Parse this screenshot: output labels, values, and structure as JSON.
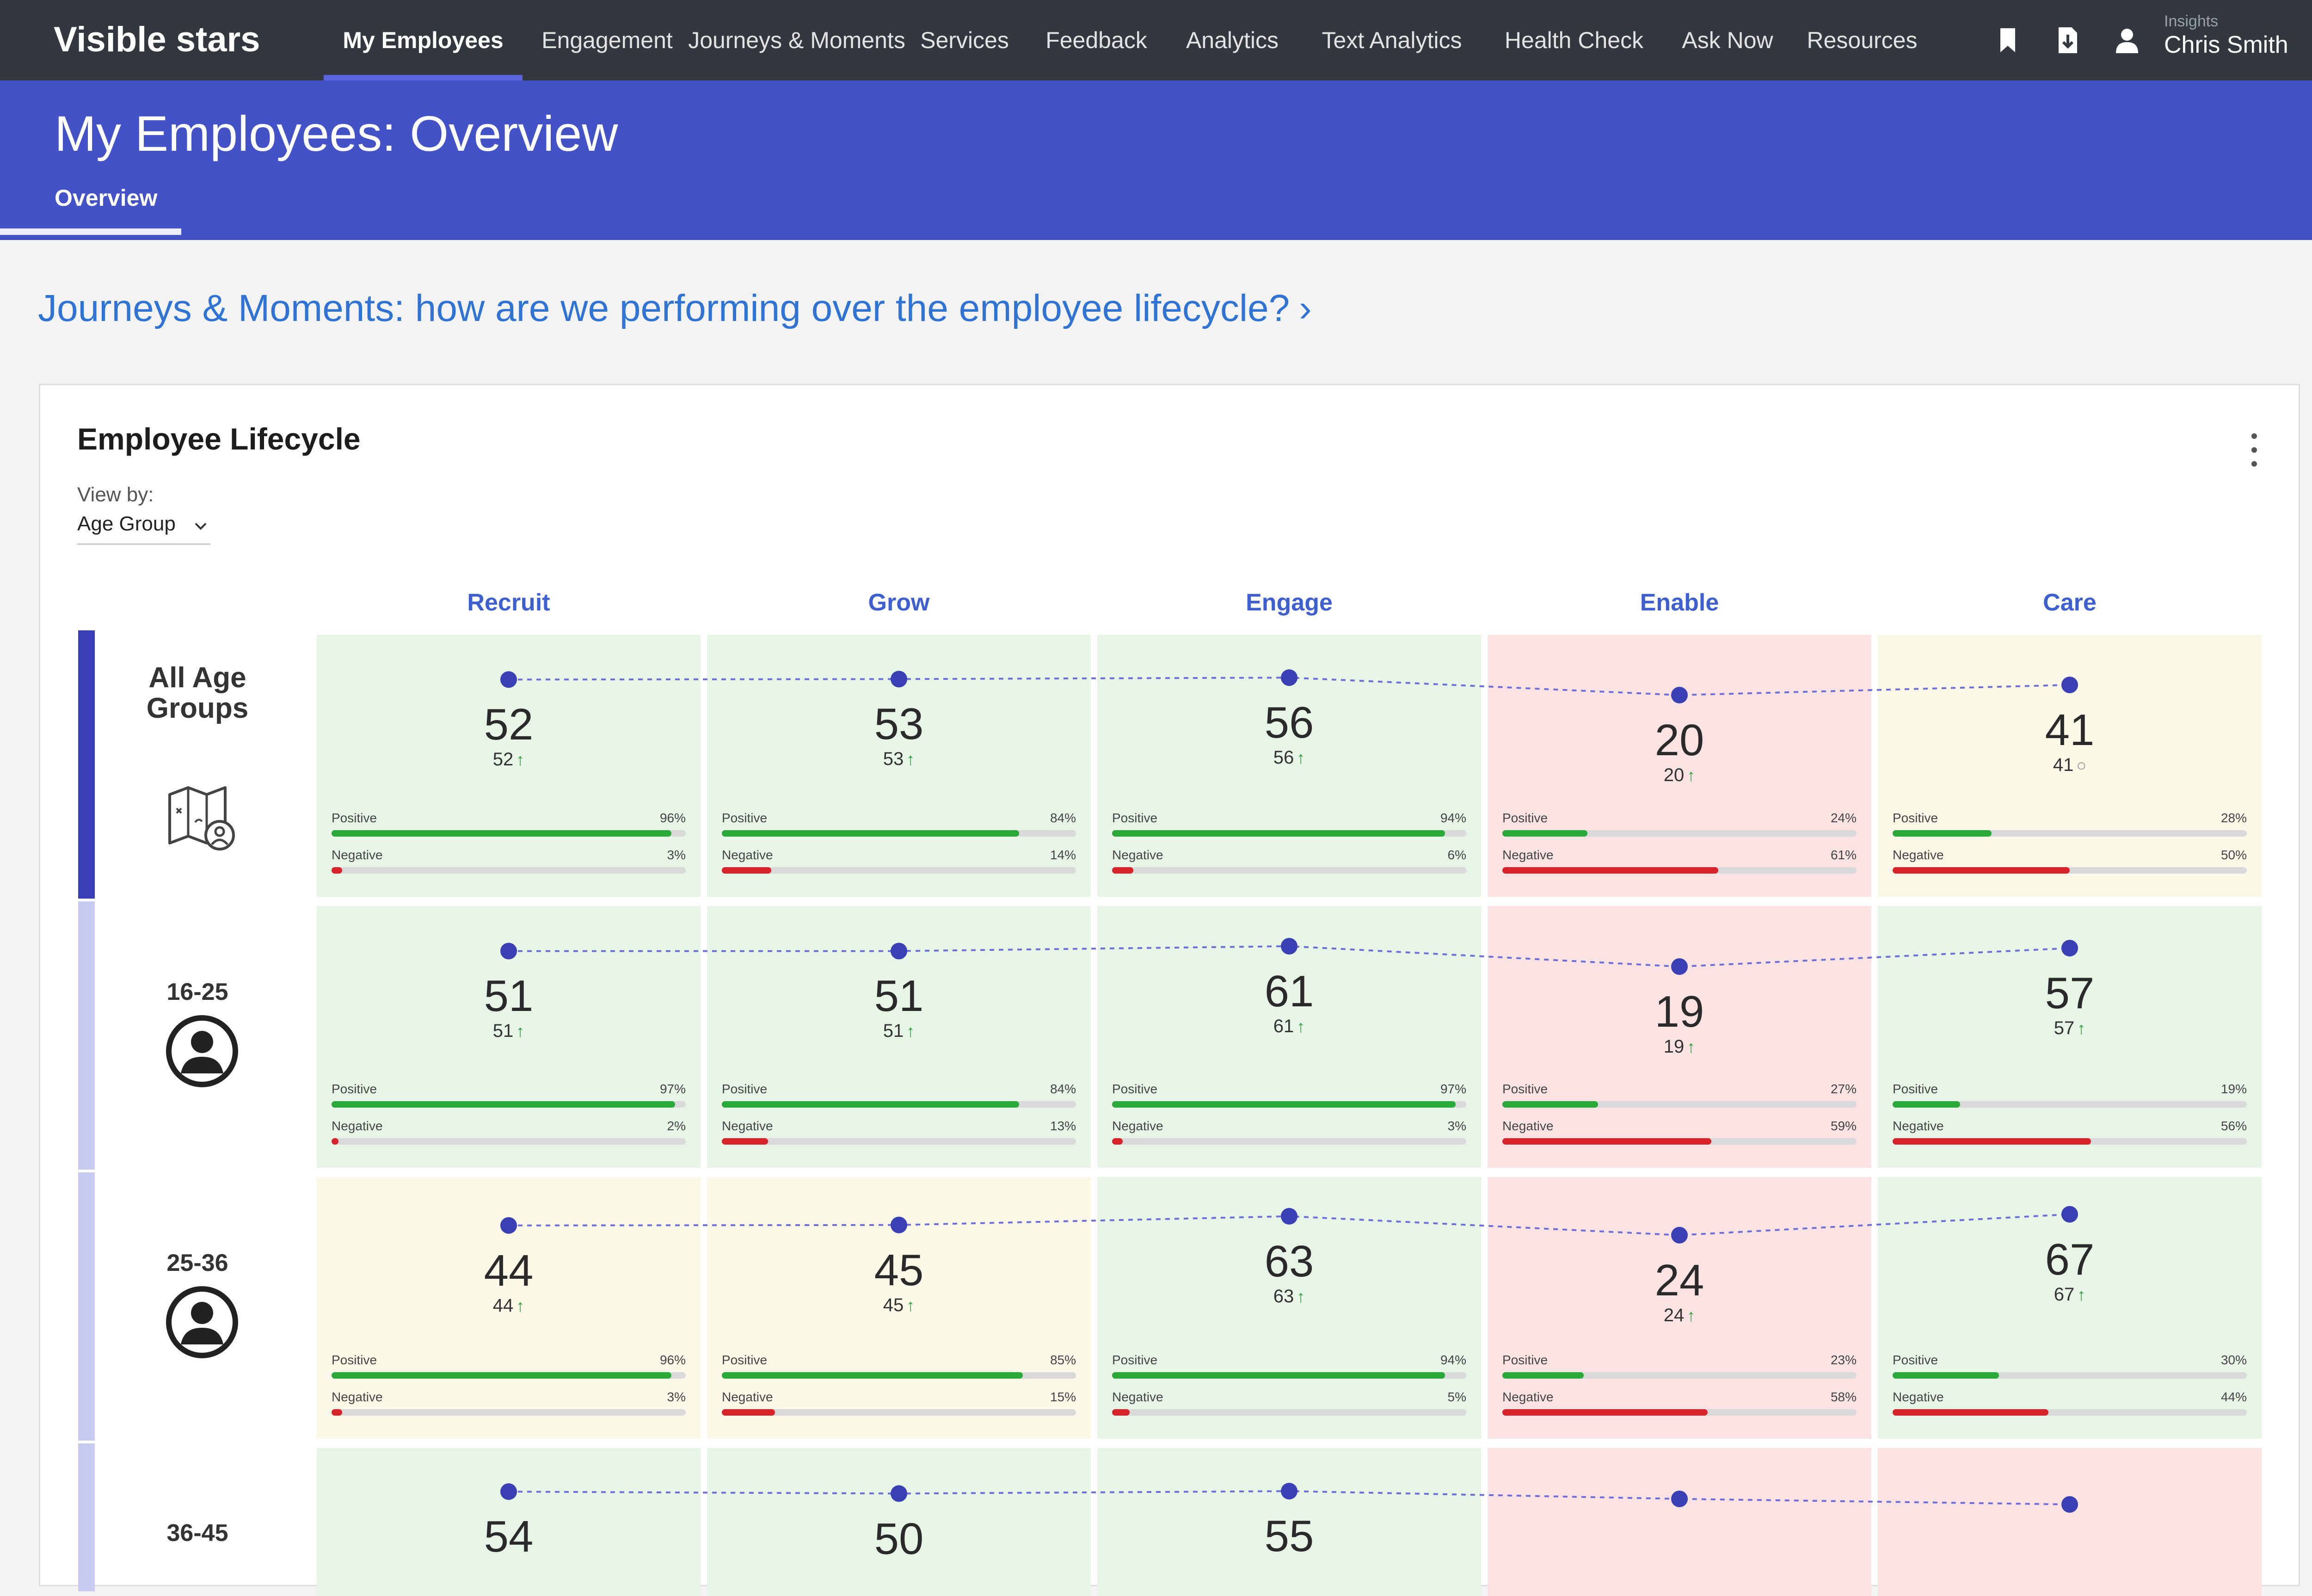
{
  "brand": "Visible stars",
  "nav": {
    "items": [
      {
        "label": "My Employees",
        "active": true
      },
      {
        "label": "Engagement",
        "active": false
      },
      {
        "label": "Journeys & Moments",
        "active": false
      },
      {
        "label": "Services",
        "active": false
      },
      {
        "label": "Feedback",
        "active": false
      },
      {
        "label": "Analytics",
        "active": false
      },
      {
        "label": "Text Analytics",
        "active": false
      },
      {
        "label": "Health Check",
        "active": false
      },
      {
        "label": "Ask Now",
        "active": false
      },
      {
        "label": "Resources",
        "active": false
      }
    ],
    "icons": [
      "bookmark-icon",
      "export-icon",
      "user-icon"
    ],
    "user_kicker": "Insights",
    "user_name": "Chris Smith"
  },
  "header": {
    "title": "My Employees: Overview",
    "tab": "Overview"
  },
  "section_link": {
    "text": "Journeys & Moments: how are we performing over the employee lifecycle?",
    "chevron": "›"
  },
  "card": {
    "title": "Employee Lifecycle",
    "view_by_label": "View by:",
    "view_by_value": "Age Group",
    "positive_label": "Positive",
    "negative_label": "Negative"
  },
  "colors": {
    "green_cell": "#e7f5e7",
    "red_cell": "#fbe3e3",
    "yellow_cell": "#fcf8e8",
    "accent": "#4452c8",
    "positive_bar": "#2aa83a",
    "negative_bar": "#d8232a"
  },
  "chart_data": {
    "type": "table",
    "columns": [
      "Recruit",
      "Grow",
      "Engage",
      "Enable",
      "Care"
    ],
    "rows": [
      {
        "label": "All Age Groups",
        "icon": "map-person-icon",
        "cells": [
          {
            "score": 52,
            "sub": "52",
            "trend": "up",
            "status": "green",
            "positive": 96,
            "negative": 3
          },
          {
            "score": 53,
            "sub": "53",
            "trend": "up",
            "status": "green",
            "positive": 84,
            "negative": 14
          },
          {
            "score": 56,
            "sub": "56",
            "trend": "up",
            "status": "green",
            "positive": 94,
            "negative": 6
          },
          {
            "score": 20,
            "sub": "20",
            "trend": "up",
            "status": "red",
            "positive": 24,
            "negative": 61
          },
          {
            "score": 41,
            "sub": "41",
            "trend": "flat",
            "status": "yellow",
            "positive": 28,
            "negative": 50
          }
        ]
      },
      {
        "label": "16-25",
        "icon": "person-circle-icon",
        "cells": [
          {
            "score": 51,
            "sub": "51",
            "trend": "up",
            "status": "green",
            "positive": 97,
            "negative": 2
          },
          {
            "score": 51,
            "sub": "51",
            "trend": "up",
            "status": "green",
            "positive": 84,
            "negative": 13
          },
          {
            "score": 61,
            "sub": "61",
            "trend": "up",
            "status": "green",
            "positive": 97,
            "negative": 3
          },
          {
            "score": 19,
            "sub": "19",
            "trend": "up",
            "status": "red",
            "positive": 27,
            "negative": 59
          },
          {
            "score": 57,
            "sub": "57",
            "trend": "up",
            "status": "green",
            "positive": 19,
            "negative": 56
          }
        ]
      },
      {
        "label": "25-36",
        "icon": "person-circle-icon",
        "cells": [
          {
            "score": 44,
            "sub": "44",
            "trend": "up",
            "status": "yellow",
            "positive": 96,
            "negative": 3
          },
          {
            "score": 45,
            "sub": "45",
            "trend": "up",
            "status": "yellow",
            "positive": 85,
            "negative": 15
          },
          {
            "score": 63,
            "sub": "63",
            "trend": "up",
            "status": "green",
            "positive": 94,
            "negative": 5
          },
          {
            "score": 24,
            "sub": "24",
            "trend": "up",
            "status": "red",
            "positive": 23,
            "negative": 58
          },
          {
            "score": 67,
            "sub": "67",
            "trend": "up",
            "status": "green",
            "positive": 30,
            "negative": 44
          }
        ]
      },
      {
        "label": "36-45",
        "icon": "person-circle-icon",
        "cells": [
          {
            "score": 54,
            "status": "green"
          },
          {
            "score": 50,
            "status": "green"
          },
          {
            "score": 55,
            "status": "green"
          },
          {
            "score": null,
            "status": "red"
          },
          {
            "score": null,
            "status": "red"
          }
        ]
      }
    ]
  }
}
